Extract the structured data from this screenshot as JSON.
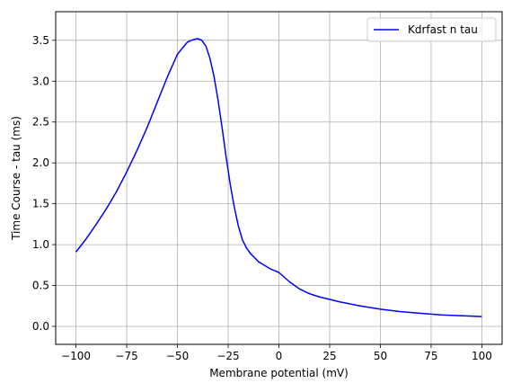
{
  "chart_data": {
    "type": "line",
    "title": "",
    "xlabel": "Membrane potential (mV)",
    "ylabel": "Time Course - tau (ms)",
    "xlim": [
      -110,
      110
    ],
    "ylim": [
      -0.22,
      3.85
    ],
    "xticks": [
      -100,
      -75,
      -50,
      -25,
      0,
      25,
      50,
      75,
      100
    ],
    "xtick_labels": [
      "−100",
      "−75",
      "−50",
      "−25",
      "0",
      "25",
      "50",
      "75",
      "100"
    ],
    "yticks": [
      0.0,
      0.5,
      1.0,
      1.5,
      2.0,
      2.5,
      3.0,
      3.5
    ],
    "ytick_labels": [
      "0.0",
      "0.5",
      "1.0",
      "1.5",
      "2.0",
      "2.5",
      "3.0",
      "3.5"
    ],
    "grid": true,
    "legend_position": "upper right",
    "series": [
      {
        "name": "Kdrfast n tau",
        "color": "#0000ff",
        "x": [
          -100,
          -95,
          -90,
          -85,
          -80,
          -75,
          -70,
          -65,
          -60,
          -55,
          -50,
          -45,
          -42,
          -40,
          -38,
          -36,
          -34,
          -32,
          -30,
          -28,
          -26,
          -24,
          -22,
          -20,
          -18,
          -16,
          -14,
          -12,
          -10,
          -8,
          -6,
          -4,
          -2,
          0,
          5,
          10,
          15,
          20,
          25,
          30,
          40,
          50,
          60,
          70,
          80,
          90,
          100
        ],
        "y": [
          0.91,
          1.07,
          1.25,
          1.44,
          1.65,
          1.89,
          2.15,
          2.43,
          2.74,
          3.05,
          3.33,
          3.48,
          3.51,
          3.52,
          3.5,
          3.43,
          3.28,
          3.06,
          2.77,
          2.43,
          2.07,
          1.74,
          1.46,
          1.23,
          1.06,
          0.96,
          0.89,
          0.84,
          0.79,
          0.76,
          0.73,
          0.7,
          0.68,
          0.66,
          0.55,
          0.46,
          0.4,
          0.36,
          0.33,
          0.3,
          0.25,
          0.21,
          0.18,
          0.16,
          0.14,
          0.13,
          0.12
        ]
      }
    ]
  }
}
